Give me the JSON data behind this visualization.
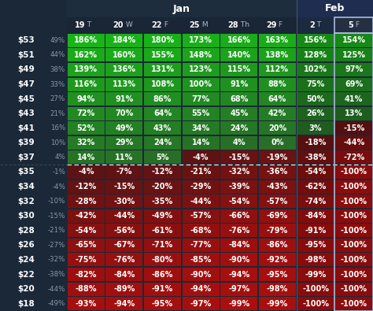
{
  "col_header_bold_nums": [
    "19",
    "20",
    "22",
    "25",
    "28",
    "29",
    "2",
    "5"
  ],
  "col_header_suffixes": [
    "T",
    "W",
    "F",
    "M",
    "Th",
    "F",
    "T",
    "F"
  ],
  "row_labels": [
    "$53",
    "$51",
    "$49",
    "$47",
    "$45",
    "$43",
    "$41",
    "$39",
    "$37",
    "$35",
    "$34",
    "$32",
    "$30",
    "$28",
    "$26",
    "$24",
    "$22",
    "$20",
    "$18"
  ],
  "row_pct": [
    "49%",
    "44%",
    "38%",
    "33%",
    "27%",
    "21%",
    "16%",
    "10%",
    "4%",
    "-1%",
    "-4%",
    "-10%",
    "-15%",
    "-21%",
    "-27%",
    "-32%",
    "-38%",
    "-44%",
    "-49%"
  ],
  "dashed_after_row": 8,
  "highlighted_col": 7,
  "data": [
    [
      186,
      184,
      180,
      173,
      166,
      163,
      156,
      154
    ],
    [
      162,
      160,
      155,
      148,
      140,
      138,
      128,
      125
    ],
    [
      139,
      136,
      131,
      123,
      115,
      112,
      102,
      97
    ],
    [
      116,
      113,
      108,
      100,
      91,
      88,
      75,
      69
    ],
    [
      94,
      91,
      86,
      77,
      68,
      64,
      50,
      41
    ],
    [
      72,
      70,
      64,
      55,
      45,
      42,
      26,
      13
    ],
    [
      52,
      49,
      43,
      34,
      24,
      20,
      3,
      -15
    ],
    [
      32,
      29,
      24,
      14,
      4,
      0,
      -18,
      -44
    ],
    [
      14,
      11,
      5,
      -4,
      -15,
      -19,
      -38,
      -72
    ],
    [
      -4,
      -7,
      -12,
      -21,
      -32,
      -36,
      -54,
      -100
    ],
    [
      -12,
      -15,
      -20,
      -29,
      -39,
      -43,
      -62,
      -100
    ],
    [
      -28,
      -30,
      -35,
      -44,
      -54,
      -57,
      -74,
      -100
    ],
    [
      -42,
      -44,
      -49,
      -57,
      -66,
      -69,
      -84,
      -100
    ],
    [
      -54,
      -56,
      -61,
      -68,
      -76,
      -79,
      -91,
      -100
    ],
    [
      -65,
      -67,
      -71,
      -77,
      -84,
      -86,
      -95,
      -100
    ],
    [
      -75,
      -76,
      -80,
      -85,
      -90,
      -92,
      -98,
      -100
    ],
    [
      -82,
      -84,
      -86,
      -90,
      -94,
      -95,
      -99,
      -100
    ],
    [
      -88,
      -89,
      -91,
      -94,
      -97,
      -98,
      -100,
      -100
    ],
    [
      -93,
      -94,
      -95,
      -97,
      -99,
      -99,
      -100,
      -100
    ]
  ],
  "bg_color": "#1b2838",
  "jan_header_bg": "#1e2d3e",
  "feb_header_bg": "#1e2d50",
  "col_header_bg": "#1a2535",
  "highlighted_col_bg": "#252f42",
  "green_low": [
    40,
    110,
    40
  ],
  "green_high": [
    25,
    180,
    25
  ],
  "red_low": [
    90,
    20,
    20
  ],
  "red_high": [
    170,
    15,
    15
  ]
}
